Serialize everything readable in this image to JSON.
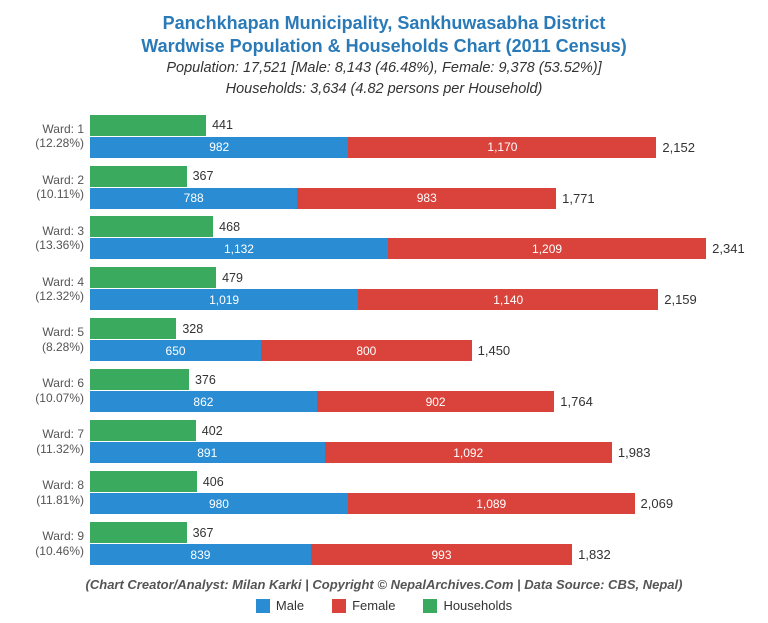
{
  "chart": {
    "type": "stacked-bar-horizontal",
    "title_line1": "Panchkhapan Municipality, Sankhuwasabha District",
    "title_line2": "Wardwise Population & Households Chart (2011 Census)",
    "subtitle_line1": "Population: 17,521 [Male: 8,143 (46.48%), Female: 9,378 (53.52%)]",
    "subtitle_line2": "Households: 3,634 (4.82 persons per Household)",
    "title_color": "#2a7ab8",
    "title_fontsize": 18,
    "subtitle_fontsize": 14.5,
    "background_color": "#ffffff",
    "x_max": 2500,
    "colors": {
      "male": "#2a8dd4",
      "female": "#d9433b",
      "households": "#3aaa5f",
      "text_inside": "#ffffff",
      "text_outside": "#333333"
    },
    "legend": {
      "items": [
        {
          "label": "Male",
          "color_key": "male"
        },
        {
          "label": "Female",
          "color_key": "female"
        },
        {
          "label": "Households",
          "color_key": "households"
        }
      ]
    },
    "wards": [
      {
        "ward": "Ward: 1",
        "pct": "(12.28%)",
        "households": 441,
        "male": 982,
        "female": 1170,
        "total": "2,152"
      },
      {
        "ward": "Ward: 2",
        "pct": "(10.11%)",
        "households": 367,
        "male": 788,
        "female": 983,
        "total": "1,771"
      },
      {
        "ward": "Ward: 3",
        "pct": "(13.36%)",
        "households": 468,
        "male": 1132,
        "female": 1209,
        "total": "2,341"
      },
      {
        "ward": "Ward: 4",
        "pct": "(12.32%)",
        "households": 479,
        "male": 1019,
        "female": 1140,
        "total": "2,159"
      },
      {
        "ward": "Ward: 5",
        "pct": "(8.28%)",
        "households": 328,
        "male": 650,
        "female": 800,
        "total": "1,450"
      },
      {
        "ward": "Ward: 6",
        "pct": "(10.07%)",
        "households": 376,
        "male": 862,
        "female": 902,
        "total": "1,764"
      },
      {
        "ward": "Ward: 7",
        "pct": "(11.32%)",
        "households": 402,
        "male": 891,
        "female": 1092,
        "total": "1,983"
      },
      {
        "ward": "Ward: 8",
        "pct": "(11.81%)",
        "households": 406,
        "male": 980,
        "female": 1089,
        "total": "2,069"
      },
      {
        "ward": "Ward: 9",
        "pct": "(10.46%)",
        "households": 367,
        "male": 839,
        "female": 993,
        "total": "1,832"
      }
    ],
    "credit": "(Chart Creator/Analyst: Milan Karki | Copyright © NepalArchives.Com | Data Source: CBS, Nepal)"
  }
}
